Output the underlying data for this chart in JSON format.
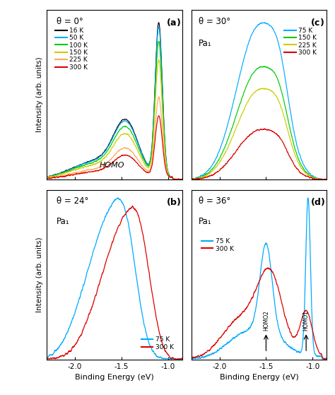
{
  "xlim": [
    -2.3,
    -0.85
  ],
  "colors_a": {
    "16K": "#000000",
    "50K": "#00AAFF",
    "100K": "#00CC00",
    "150K": "#CCCC00",
    "225K": "#FFAA55",
    "300K": "#DD0000"
  },
  "colors_cd": {
    "75K": "#00AAFF",
    "150K": "#00CC00",
    "225K": "#CCCC00",
    "300K": "#DD0000"
  },
  "colors_b": {
    "75K": "#00AAFF",
    "300K": "#DD0000"
  },
  "panel_a_label": "θ = 0°",
  "panel_b_label": "θ = 24°",
  "panel_c_label": "θ = 30°",
  "panel_d_label": "θ = 36°",
  "pa1_label": "Pa₁",
  "homo_label": "HOMO",
  "xlabel": "Binding Energy (eV)",
  "ylabel": "Intensity (arb. units)",
  "background_color": "#ffffff"
}
